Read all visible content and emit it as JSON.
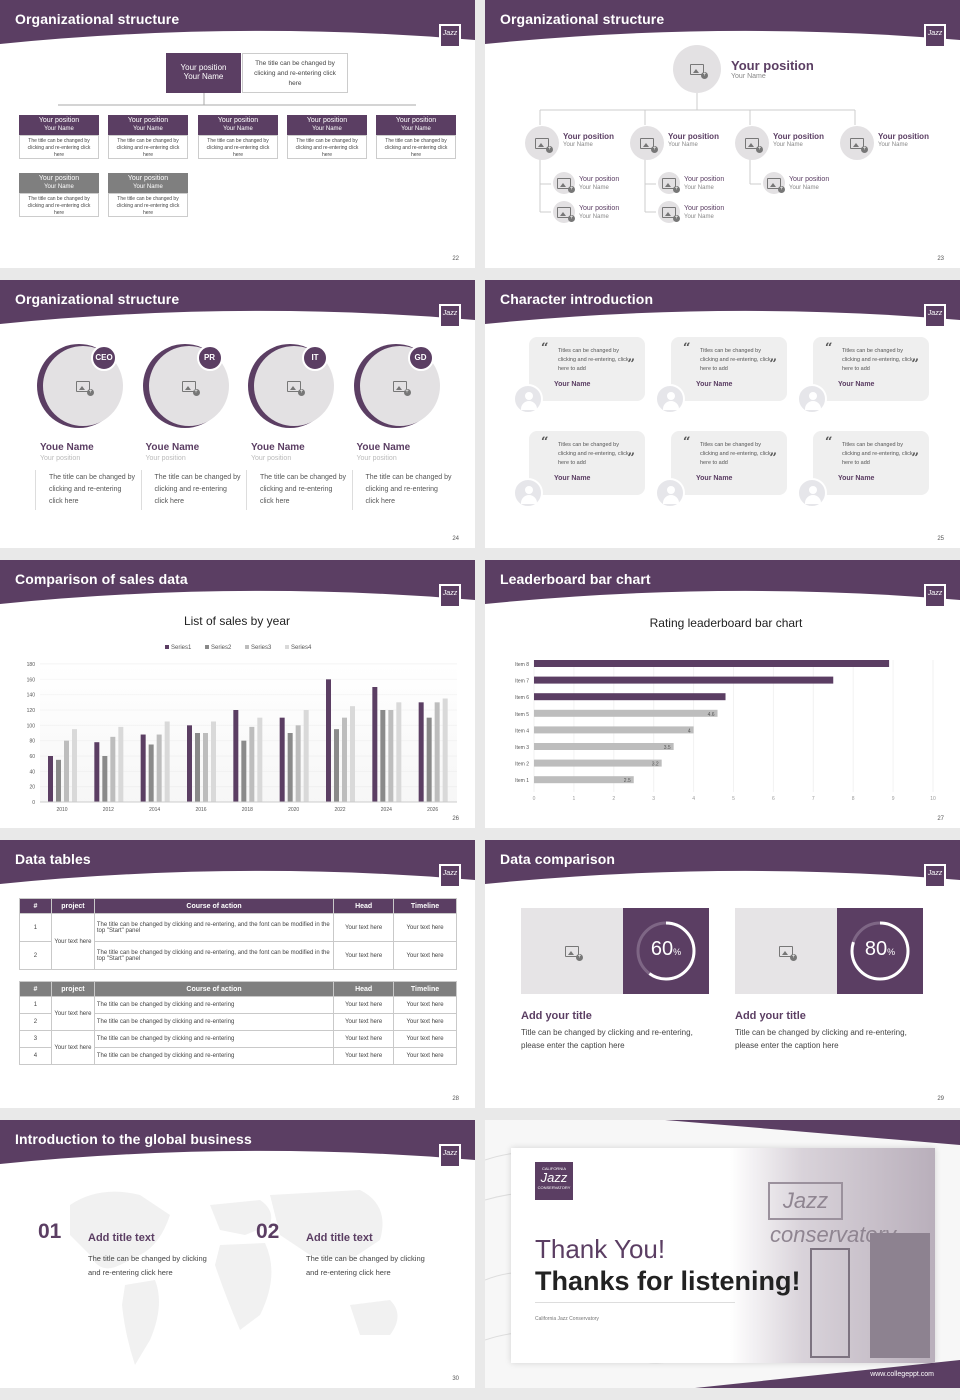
{
  "brand": {
    "logo_text": "Jazz",
    "accent": "#5b3e63",
    "gray": "#7f7f7f"
  },
  "s22": {
    "title": "Organizational structure",
    "top_box": {
      "pos": "Your position",
      "name": "Your Name"
    },
    "top_desc": "The title can be changed by clicking and re-entering click here",
    "boxes": [
      {
        "pos": "Your position",
        "name": "Your Name",
        "desc": "The title can be changed by clicking and re-entering click here"
      },
      {
        "pos": "Your position",
        "name": "Your Name",
        "desc": "The title can be changed by clicking and re-entering click here"
      },
      {
        "pos": "Your position",
        "name": "Your Name",
        "desc": "The title can be changed by clicking and re-entering click here"
      },
      {
        "pos": "Your position",
        "name": "Your Name",
        "desc": "The title can be changed by clicking and re-entering click here"
      },
      {
        "pos": "Your position",
        "name": "Your Name",
        "desc": "The title can be changed by clicking and re-entering click here"
      },
      {
        "pos": "Your position",
        "name": "Your Name",
        "desc": "The title can be changed by clicking and re-entering click here"
      },
      {
        "pos": "Your position",
        "name": "Your Name",
        "desc": "The title can be changed by clicking and re-entering click here"
      }
    ],
    "page": "22"
  },
  "s23": {
    "title": "Organizational structure",
    "top": {
      "pos": "Your position",
      "name": "Your Name"
    },
    "nodes": [
      {
        "pos": "Your position",
        "name": "Your Name"
      },
      {
        "pos": "Your position",
        "name": "Your Name"
      },
      {
        "pos": "Your position",
        "name": "Your Name"
      },
      {
        "pos": "Your position",
        "name": "Your Name"
      },
      {
        "pos": "Your position",
        "name": "Your Name"
      },
      {
        "pos": "Your position",
        "name": "Your Name"
      },
      {
        "pos": "Your position",
        "name": "Your Name"
      },
      {
        "pos": "Your position",
        "name": "Your Name"
      },
      {
        "pos": "Your position",
        "name": "Your Name"
      }
    ],
    "page": "23"
  },
  "s24": {
    "title": "Organizational structure",
    "people": [
      {
        "badge": "CEO",
        "name": "Youe Name",
        "pos": "Your position",
        "desc": "The title can be changed by clicking and re-entering click here"
      },
      {
        "badge": "PR",
        "name": "Youe Name",
        "pos": "Your position",
        "desc": "The title can be changed by clicking and re-entering click here"
      },
      {
        "badge": "IT",
        "name": "Youe Name",
        "pos": "Your position",
        "desc": "The title can be changed by clicking and re-entering click here"
      },
      {
        "badge": "GD",
        "name": "Youe Name",
        "pos": "Your position",
        "desc": "The title can be changed by clicking and re-entering click here"
      }
    ],
    "page": "24"
  },
  "s25": {
    "title": "Character introduction",
    "quote": "Titles can be changed by clicking and re-entering, click here to add",
    "name": "Your Name",
    "page": "25"
  },
  "s26": {
    "title": "Comparison of sales data",
    "page": "26"
  },
  "s27": {
    "title": "Leaderboard bar chart",
    "page": "27"
  },
  "chart_data": [
    {
      "type": "bar",
      "title": "List of sales by year",
      "categories": [
        "2010",
        "2012",
        "2014",
        "2016",
        "2018",
        "2020",
        "2022",
        "2024",
        "2026"
      ],
      "series": [
        {
          "name": "Series1",
          "color": "#5b3e63",
          "values": [
            60,
            78,
            88,
            100,
            120,
            110,
            160,
            150,
            130
          ]
        },
        {
          "name": "Series2",
          "color": "#8a8a8a",
          "values": [
            55,
            60,
            75,
            90,
            80,
            90,
            95,
            120,
            110
          ]
        },
        {
          "name": "Series3",
          "color": "#bdbdbd",
          "values": [
            80,
            85,
            88,
            90,
            98,
            100,
            110,
            120,
            130
          ]
        },
        {
          "name": "Series4",
          "color": "#d9d9d9",
          "values": [
            95,
            98,
            105,
            105,
            110,
            120,
            125,
            130,
            135
          ]
        }
      ],
      "ylim": [
        0,
        180
      ],
      "yticks": [
        "0",
        "20",
        "40",
        "60",
        "80",
        "100",
        "120",
        "140",
        "160",
        "180"
      ],
      "legend": "top"
    },
    {
      "type": "bar",
      "orientation": "horizontal",
      "title": "Rating leaderboard bar chart",
      "categories": [
        "Item 1",
        "Item 2",
        "Item 3",
        "Item 4",
        "Item 5",
        "Item 6",
        "Item 7",
        "Item 8"
      ],
      "values": [
        2.5,
        3.2,
        3.5,
        4,
        4.6,
        4.8,
        7.5,
        8.9
      ],
      "labels": [
        "2.5",
        "3.2",
        "3.5",
        "4",
        "4.6",
        "",
        "",
        ""
      ],
      "xlim": [
        0,
        10
      ],
      "xticks": [
        "0",
        "1",
        "2",
        "3",
        "4",
        "5",
        "6",
        "7",
        "8",
        "9",
        "10"
      ]
    }
  ],
  "s28": {
    "title": "Data tables",
    "headers": [
      "#",
      "project",
      "Course of action",
      "Head",
      "Timeline"
    ],
    "t1_rows": [
      {
        "n": "1",
        "action": "The title can be changed by clicking and re-entering, and the font can be modified in the top \"Start\" panel",
        "head": "Your text here",
        "time": "Your text here"
      },
      {
        "n": "2",
        "action": "The title can be changed by clicking and re-entering, and the font can be modified in the top \"Start\" panel",
        "head": "Your text here",
        "time": "Your text here"
      }
    ],
    "t1_project": "Your text here",
    "t2_rows": [
      {
        "n": "1",
        "action": "The title can be changed by clicking and re-entering",
        "head": "Your text here",
        "time": "Your text here"
      },
      {
        "n": "2",
        "action": "The title can be changed by clicking and re-entering",
        "head": "Your text here",
        "time": "Your text here"
      },
      {
        "n": "3",
        "action": "The title can be changed by clicking and re-entering",
        "head": "Your text here",
        "time": "Your text here"
      },
      {
        "n": "4",
        "action": "The title can be changed by clicking and re-entering",
        "head": "Your text here",
        "time": "Your text here"
      }
    ],
    "t2_project_a": "Your text here",
    "t2_project_b": "Your text here",
    "page": "28"
  },
  "s29": {
    "title": "Data comparison",
    "cards": [
      {
        "pct": 60,
        "pct_text": "60",
        "unit": "%",
        "title": "Add your title",
        "desc": "Title can be changed by clicking and re-entering, please enter the caption here"
      },
      {
        "pct": 80,
        "pct_text": "80",
        "unit": "%",
        "title": "Add your title",
        "desc": "Title can be changed by clicking and re-entering, please enter the caption here"
      }
    ],
    "page": "29"
  },
  "s30": {
    "title": "Introduction to the global business",
    "items": [
      {
        "num": "01",
        "title": "Add title text",
        "desc": "The title can be changed by clicking and re-entering click here"
      },
      {
        "num": "02",
        "title": "Add title text",
        "desc": "The title can be changed by clicking and re-entering click here"
      }
    ],
    "page": "30"
  },
  "s31": {
    "thanks": "Thank You!",
    "listening": "Thanks for listening!",
    "school": "California Jazz Conservatory",
    "url": "www.collegeppt.com",
    "logo_top": "CALIFORNIA",
    "logo_mid": "Jazz",
    "logo_bot": "CONSERVATORY",
    "sign": "Jazz conservatory"
  }
}
